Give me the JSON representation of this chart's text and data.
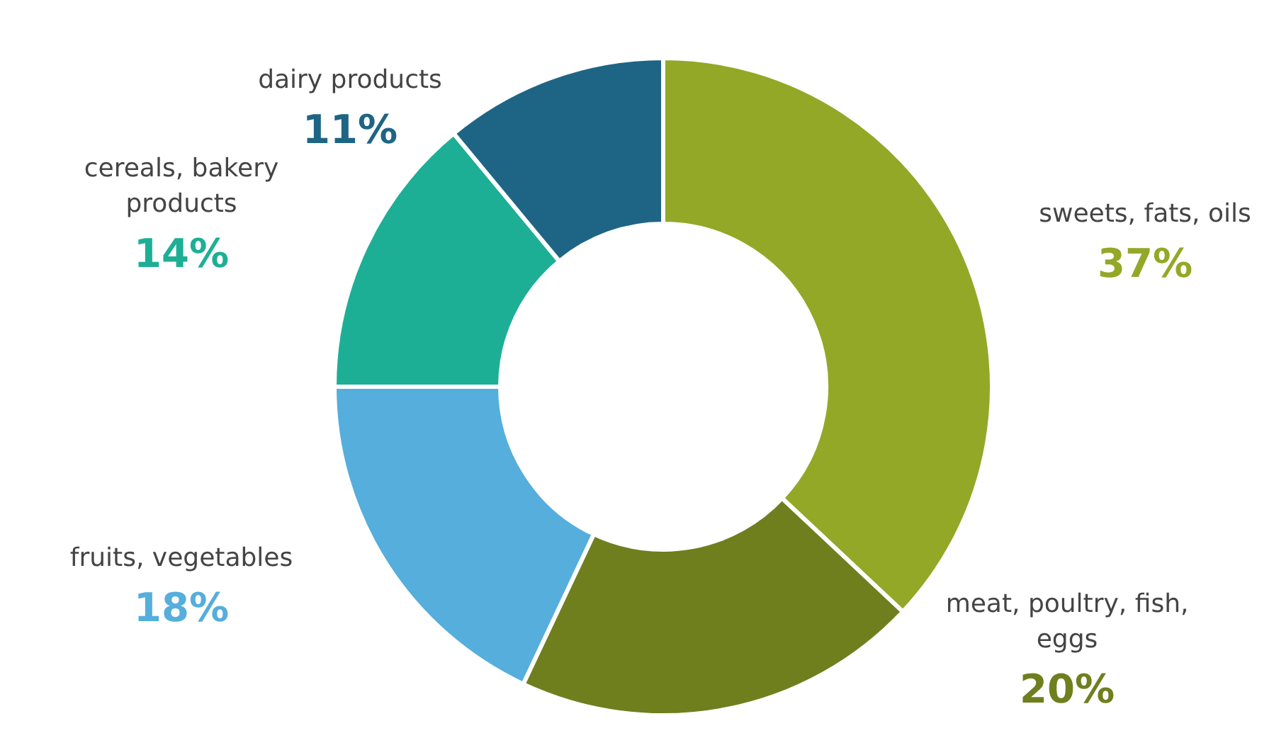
{
  "chart_data": {
    "type": "donut",
    "categories": [
      "sweets, fats, oils",
      "meat, poultry, fish, eggs",
      "fruits, vegetables",
      "cereals, bakery products",
      "dairy products"
    ],
    "values": [
      37,
      20,
      18,
      14,
      11
    ],
    "colors": [
      "#93a827",
      "#6f7f1e",
      "#55aedc",
      "#1daf96",
      "#1e6585"
    ],
    "value_labels": [
      "37%",
      "20%",
      "18%",
      "14%",
      "11%"
    ]
  }
}
